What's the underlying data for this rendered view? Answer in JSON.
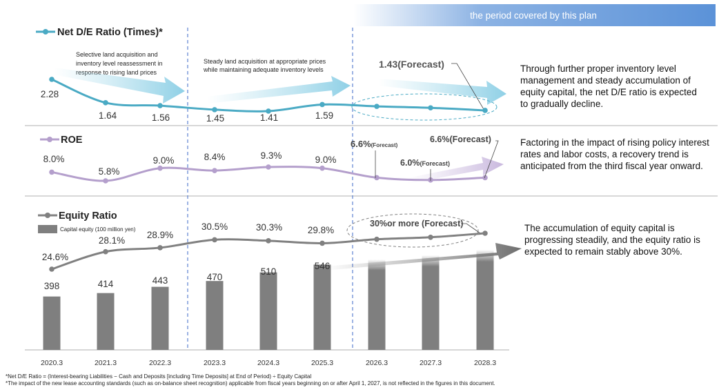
{
  "plan_banner": "the period covered by this plan",
  "colors": {
    "de": "#4aaac4",
    "de_arrow": "#a9dcec",
    "roe": "#b49fcc",
    "roe_arrow": "#d7cbe6",
    "equity": "#808080",
    "bar": "#7f7f7f",
    "banner": "#5b92d8",
    "divider": "#5b7fd0"
  },
  "chart_data": [
    {
      "type": "line",
      "title": "Net D/E Ratio (Times)*",
      "categories": [
        "2020.3",
        "2021.3",
        "2022.3",
        "2023.3",
        "2024.3",
        "2025.3",
        "2026.3",
        "2027.3",
        "2028.3"
      ],
      "values": [
        2.28,
        1.64,
        1.56,
        1.45,
        1.41,
        1.59,
        1.54,
        1.5,
        1.43
      ],
      "labels": [
        "2.28",
        "1.64",
        "1.56",
        "1.45",
        "1.41",
        "1.59"
      ],
      "forecast_label": "1.43(Forecast)",
      "annotations": [
        "Selective land acquisition and",
        "inventory level reassessment in",
        "response to rising land prices",
        "Steady land acquisition at appropriate prices",
        "while maintaining adequate inventory levels"
      ],
      "commentary": "Through further proper inventory level management and steady accumulation of equity capital, the net D/E ratio is expected to gradually decline."
    },
    {
      "type": "line",
      "title": "ROE",
      "categories": [
        "2020.3",
        "2021.3",
        "2022.3",
        "2023.3",
        "2024.3",
        "2025.3",
        "2026.3",
        "2027.3",
        "2028.3"
      ],
      "values": [
        8.0,
        5.8,
        9.0,
        8.4,
        9.3,
        9.0,
        6.6,
        6.0,
        6.6
      ],
      "labels": [
        "8.0%",
        "5.8%",
        "9.0%",
        "8.4%",
        "9.3%",
        "9.0%"
      ],
      "forecast_labels": [
        {
          "value": "6.6%",
          "suffix": "(Forecast)"
        },
        {
          "value": "6.0%",
          "suffix": "(Forecast)"
        },
        {
          "value": "6.6%",
          "suffix": "(Forecast)"
        }
      ],
      "commentary": "Factoring in the impact of rising policy interest rates and labor costs, a recovery trend is anticipated from the third fiscal year onward."
    },
    {
      "type": "bar+line",
      "title": "Equity Ratio",
      "bar_legend": "Capital equity (100 million yen)",
      "categories": [
        "2020.3",
        "2021.3",
        "2022.3",
        "2023.3",
        "2024.3",
        "2025.3",
        "2026.3",
        "2027.3",
        "2028.3"
      ],
      "line_values": [
        24.6,
        28.1,
        28.9,
        30.5,
        30.3,
        29.8,
        30.6,
        31.0,
        31.8
      ],
      "line_labels": [
        "24.6%",
        "28.1%",
        "28.9%",
        "30.5%",
        "30.3%",
        "29.8%"
      ],
      "bar_values": [
        398,
        414,
        443,
        470,
        510,
        546,
        570,
        590,
        615
      ],
      "bar_labels": [
        "398",
        "414",
        "443",
        "470",
        "510",
        "546"
      ],
      "forecast_label": "30%or more (Forecast)",
      "commentary": "The accumulation of equity capital is progressing steadily, and the equity ratio is expected to remain stably above 30%."
    }
  ],
  "footnotes": [
    "*Net D/E Ratio = (Interest-bearing Liabilities − Cash and Deposits [including Time Deposits] at End of Period) ÷ Equity Capital",
    "*The impact of the new lease accounting standards (such as on-balance sheet recognition) applicable from fiscal years beginning on or after April 1, 2027, is not reflected in the figures in this document."
  ]
}
